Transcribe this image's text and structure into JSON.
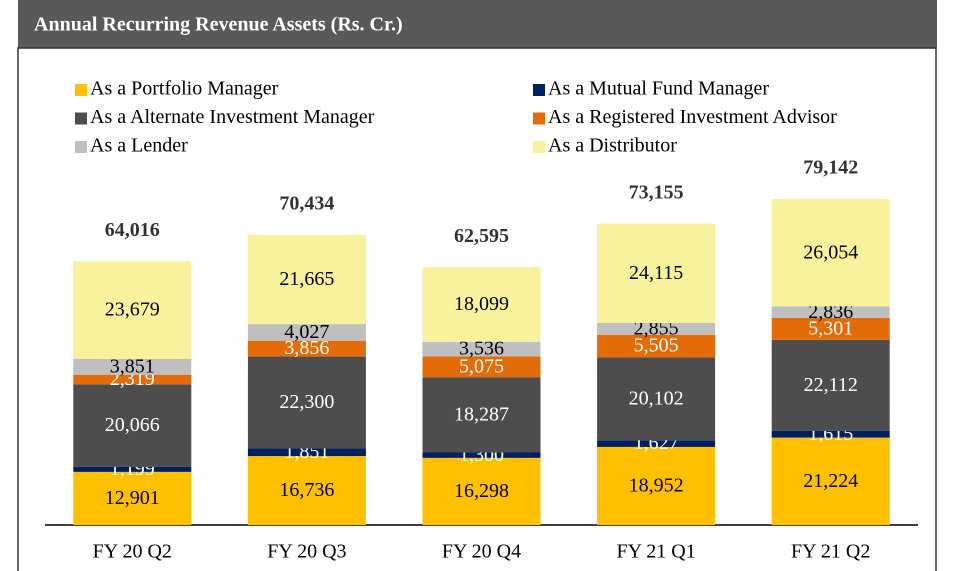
{
  "chart_data": {
    "type": "stacked_bar",
    "title": "Annual Recurring Revenue Assets (Rs. Cr.)",
    "categories": [
      "FY 20 Q2",
      "FY 20 Q3",
      "FY 20 Q4",
      "FY 21 Q1",
      "FY 21 Q2"
    ],
    "series": [
      {
        "name": "As a Portfolio Manager",
        "color": "#FFC000",
        "label_color": "#000000",
        "values": [
          12901,
          16736,
          16298,
          18952,
          21224
        ],
        "value_labels": [
          "12,901",
          "16,736",
          "16,298",
          "18,952",
          "21,224"
        ]
      },
      {
        "name": "As a Mutual Fund Manager",
        "color": "#002060",
        "label_color": "#FFFFFF",
        "values": [
          1199,
          1851,
          1300,
          1627,
          1615
        ],
        "value_labels": [
          "1,199",
          "1,851",
          "1,300",
          "1,627",
          "1,615"
        ]
      },
      {
        "name": "As a Alternate Investment Manager",
        "color": "#4D4D4D",
        "label_color": "#FFFFFF",
        "values": [
          20066,
          22300,
          18287,
          20102,
          22112
        ],
        "value_labels": [
          "20,066",
          "22,300",
          "18,287",
          "20,102",
          "22,112"
        ]
      },
      {
        "name": "As a Registered Investment Advisor",
        "color": "#E36C09",
        "label_color": "#FFFFFF",
        "values": [
          2319,
          3856,
          5075,
          5505,
          5301
        ],
        "value_labels": [
          "2,319",
          "3,856",
          "5,075",
          "5,505",
          "5,301"
        ]
      },
      {
        "name": "As a Lender",
        "color": "#BFBFBF",
        "label_color": "#000000",
        "values": [
          3851,
          4027,
          3536,
          2855,
          2836
        ],
        "value_labels": [
          "3,851",
          "4,027",
          "3,536",
          "2,855",
          "2,836"
        ]
      },
      {
        "name": "As a Distributor",
        "color": "#F8F29C",
        "label_color": "#000000",
        "values": [
          23679,
          21665,
          18099,
          24115,
          26054
        ],
        "value_labels": [
          "23,679",
          "21,665",
          "18,099",
          "24,115",
          "26,054"
        ]
      }
    ],
    "totals": [
      64016,
      70434,
      62595,
      73155,
      79142
    ],
    "total_labels": [
      "64,016",
      "70,434",
      "62,595",
      "73,155",
      "79,142"
    ]
  }
}
